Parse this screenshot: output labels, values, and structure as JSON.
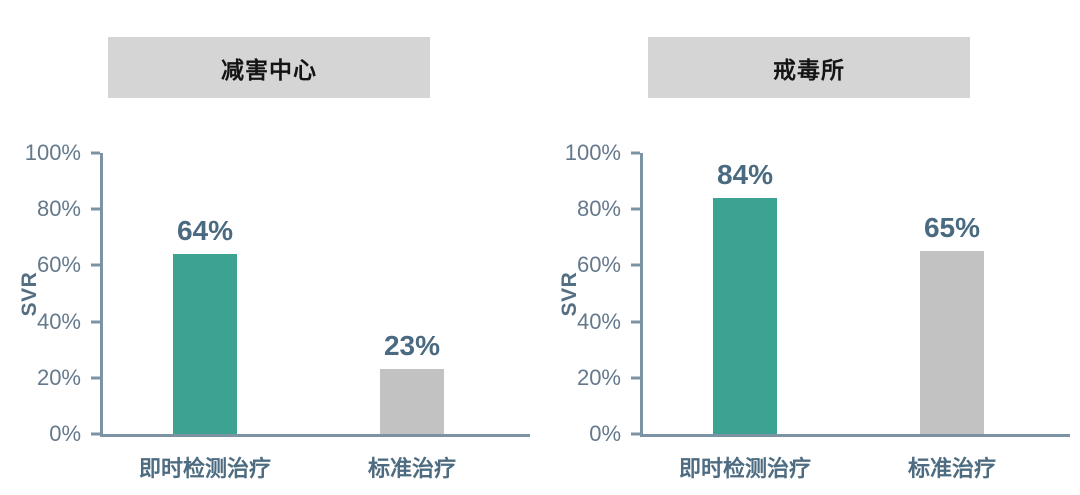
{
  "figure": {
    "background": "#FFFFFF",
    "description_colors": {
      "title_box_bg": "#D5D5D5",
      "title_text": "#141414",
      "axis_line": "#7C93A4",
      "tick_label": "#64798C",
      "value_label": "#4A6A81",
      "category_label": "#4E6C81",
      "y_axis_title": "#546F82",
      "teal_bar": "#3CA292",
      "gray_bar": "#C2C2C2"
    }
  },
  "chart_data": [
    {
      "type": "bar",
      "title": "减害中心",
      "ylabel": "SVR",
      "xlabel": "",
      "categories": [
        "即时检测治疗",
        "标准治疗"
      ],
      "values": [
        64,
        23
      ],
      "value_labels": [
        "64%",
        "23%"
      ],
      "bar_colors": [
        "#3CA292",
        "#C2C2C2"
      ],
      "ylim": [
        0,
        100
      ],
      "yticks": [
        "100%",
        "80%",
        "60%",
        "40%",
        "20%",
        "0%"
      ],
      "grid": false,
      "legend": false
    },
    {
      "type": "bar",
      "title": "戒毒所",
      "ylabel": "SVR",
      "xlabel": "",
      "categories": [
        "即时检测治疗",
        "标准治疗"
      ],
      "values": [
        84,
        65
      ],
      "value_labels": [
        "84%",
        "65%"
      ],
      "bar_colors": [
        "#3CA292",
        "#C2C2C2"
      ],
      "ylim": [
        0,
        100
      ],
      "yticks": [
        "100%",
        "80%",
        "60%",
        "40%",
        "20%",
        "0%"
      ],
      "grid": false,
      "legend": false
    }
  ]
}
